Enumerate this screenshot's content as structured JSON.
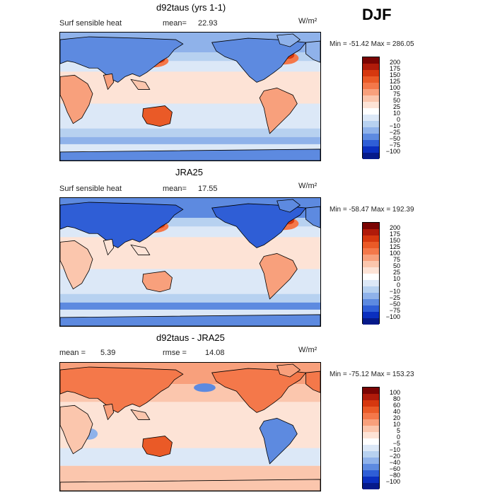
{
  "season": "DJF",
  "panels": [
    {
      "title": "d92taus (yrs 1-1)",
      "var_label": "Surf sensible heat",
      "stat1_label": "mean=",
      "stat1_value": "22.93",
      "stat2_label": "",
      "stat2_value": "",
      "units": "W/m²",
      "minmax": "Min = -51.42  Max = 286.05",
      "colorbar_labels": [
        "200",
        "175",
        "150",
        "125",
        "100",
        "75",
        "50",
        "25",
        "10",
        "0",
        "−10",
        "−25",
        "−50",
        "−75",
        "−100"
      ],
      "colors": [
        "#7a0403",
        "#b01b0a",
        "#d6380f",
        "#ea5a27",
        "#f4784a",
        "#f8a07c",
        "#fbc6ad",
        "#fde3d6",
        "#ffffff",
        "#dce8f7",
        "#b7d1f0",
        "#8fb2ea",
        "#5d8ae0",
        "#2f5ed6",
        "#0b2fbf",
        "#061a8a"
      ],
      "style": "model"
    },
    {
      "title": "JRA25",
      "var_label": "Surf sensible heat",
      "stat1_label": "mean=",
      "stat1_value": "17.55",
      "stat2_label": "",
      "stat2_value": "",
      "units": "W/m²",
      "minmax": "Min = -58.47  Max = 192.39",
      "colorbar_labels": [
        "200",
        "175",
        "150",
        "125",
        "100",
        "75",
        "50",
        "25",
        "10",
        "0",
        "−10",
        "−25",
        "−50",
        "−75",
        "−100"
      ],
      "colors": [
        "#7a0403",
        "#b01b0a",
        "#d6380f",
        "#ea5a27",
        "#f4784a",
        "#f8a07c",
        "#fbc6ad",
        "#fde3d6",
        "#ffffff",
        "#dce8f7",
        "#b7d1f0",
        "#8fb2ea",
        "#5d8ae0",
        "#2f5ed6",
        "#0b2fbf",
        "#061a8a"
      ],
      "style": "obs"
    },
    {
      "title": "d92taus - JRA25",
      "var_label": "",
      "stat1_label": "mean =",
      "stat1_value": "5.39",
      "stat2_label": "rmse =",
      "stat2_value": "14.08",
      "units": "W/m²",
      "minmax": "Min = -75.12  Max = 153.23",
      "colorbar_labels": [
        "100",
        "80",
        "60",
        "40",
        "20",
        "10",
        "5",
        "0",
        "−5",
        "−10",
        "−20",
        "−40",
        "−60",
        "−80",
        "−100"
      ],
      "colors": [
        "#7a0403",
        "#b01b0a",
        "#d6380f",
        "#ea5a27",
        "#f4784a",
        "#f8a07c",
        "#fbc6ad",
        "#fde3d6",
        "#ffffff",
        "#dce8f7",
        "#b7d1f0",
        "#8fb2ea",
        "#5d8ae0",
        "#2f5ed6",
        "#0b2fbf",
        "#061a8a"
      ],
      "style": "diff"
    }
  ]
}
